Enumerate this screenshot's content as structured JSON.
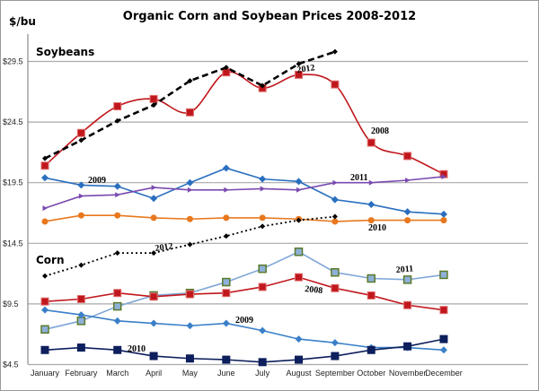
{
  "chart_data": {
    "type": "line",
    "title": "Organic Corn and Soybean Prices 2008-2012",
    "ylabel": "$/bu",
    "ylim": [
      4.5,
      31.5
    ],
    "yticks": [
      "$4.5",
      "$9.5",
      "$14.5",
      "$19.5",
      "$24.5",
      "$29.5"
    ],
    "ytick_values": [
      4.5,
      9.5,
      14.5,
      19.5,
      24.5,
      29.5
    ],
    "grid": "horizontal",
    "categories": [
      "January",
      "February",
      "March",
      "April",
      "May",
      "June",
      "July",
      "August",
      "September",
      "October",
      "November",
      "December"
    ],
    "groups": [
      {
        "name": "Soybeans",
        "series": [
          {
            "name": "2008",
            "color": "#c0171d",
            "marker": "square",
            "smooth": true,
            "values": [
              20.9,
              23.6,
              25.8,
              26.4,
              25.3,
              28.6,
              27.3,
              28.4,
              27.6,
              22.8,
              21.7,
              20.2
            ]
          },
          {
            "name": "2012",
            "color": "#000000",
            "marker": "diamond",
            "dash": "dashed",
            "values": [
              21.5,
              23.0,
              24.6,
              25.9,
              27.9,
              29.0,
              27.5,
              29.3,
              30.3,
              null,
              null,
              null
            ]
          },
          {
            "name": "2009",
            "color": "#2a6fbf",
            "marker": "diamond",
            "values": [
              19.9,
              19.3,
              19.2,
              18.2,
              19.5,
              20.7,
              19.8,
              19.6,
              18.1,
              17.7,
              17.1,
              16.9
            ]
          },
          {
            "name": "2011",
            "color": "#7a4ab0",
            "marker": "triangle",
            "values": [
              17.4,
              18.4,
              18.5,
              19.1,
              18.9,
              18.9,
              19.0,
              18.9,
              19.5,
              19.5,
              19.7,
              20.0
            ]
          },
          {
            "name": "2010",
            "color": "#e8781e",
            "marker": "circle",
            "values": [
              16.3,
              16.8,
              16.8,
              16.6,
              16.5,
              16.6,
              16.6,
              16.5,
              16.3,
              16.4,
              16.4,
              16.4
            ]
          }
        ]
      },
      {
        "name": "Corn",
        "series": [
          {
            "name": "2012",
            "color": "#000000",
            "marker": "diamond",
            "dash": "dotted",
            "values": [
              11.8,
              12.7,
              13.7,
              13.7,
              14.4,
              15.1,
              15.9,
              16.4,
              16.7,
              null,
              null,
              null
            ]
          },
          {
            "name": "2011",
            "color": "#7ea6d8",
            "marker": "square-green",
            "values": [
              7.4,
              8.1,
              9.3,
              10.2,
              10.4,
              11.3,
              12.4,
              13.8,
              12.1,
              11.6,
              11.5,
              11.9
            ]
          },
          {
            "name": "2008",
            "color": "#c0171d",
            "marker": "square",
            "values": [
              9.7,
              9.9,
              10.4,
              10.1,
              10.3,
              10.4,
              10.9,
              11.7,
              10.8,
              10.2,
              9.4,
              9.0
            ]
          },
          {
            "name": "2009",
            "color": "#3a7fc8",
            "marker": "diamond",
            "values": [
              9.0,
              8.6,
              8.1,
              7.9,
              7.7,
              7.9,
              7.3,
              6.6,
              6.3,
              5.9,
              5.9,
              5.7
            ]
          },
          {
            "name": "2010",
            "color": "#0d1f5c",
            "marker": "square",
            "values": [
              5.7,
              5.9,
              5.7,
              5.2,
              5.0,
              4.9,
              4.7,
              4.9,
              5.2,
              5.7,
              6.0,
              6.6
            ]
          }
        ]
      }
    ]
  }
}
